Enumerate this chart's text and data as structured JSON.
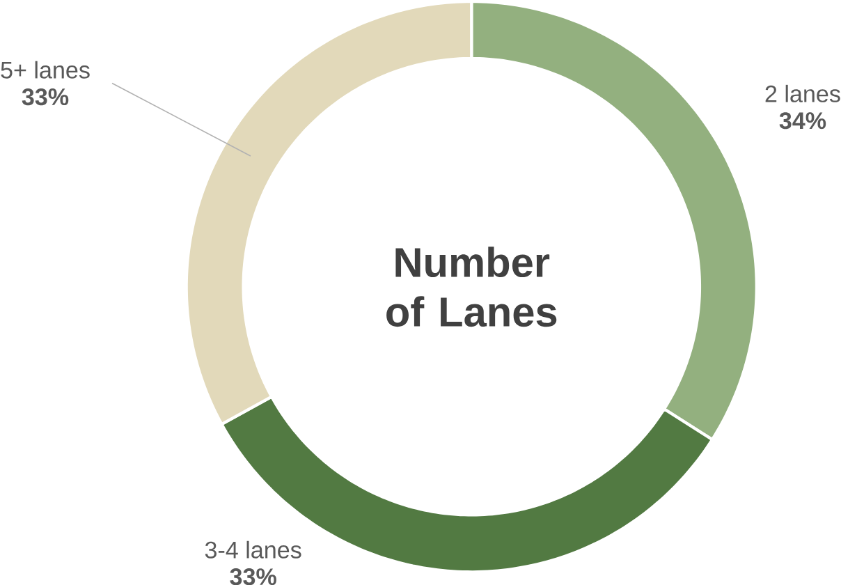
{
  "chart_data": {
    "type": "donut",
    "title": "Number of Lanes",
    "categories": [
      "2 lanes",
      "3-4 lanes",
      "5+ lanes"
    ],
    "values": [
      34,
      33,
      33
    ],
    "value_labels": [
      "34%",
      "33%",
      "33%"
    ],
    "colors": [
      "#93b07f",
      "#527a42",
      "#e2d9ba"
    ]
  }
}
